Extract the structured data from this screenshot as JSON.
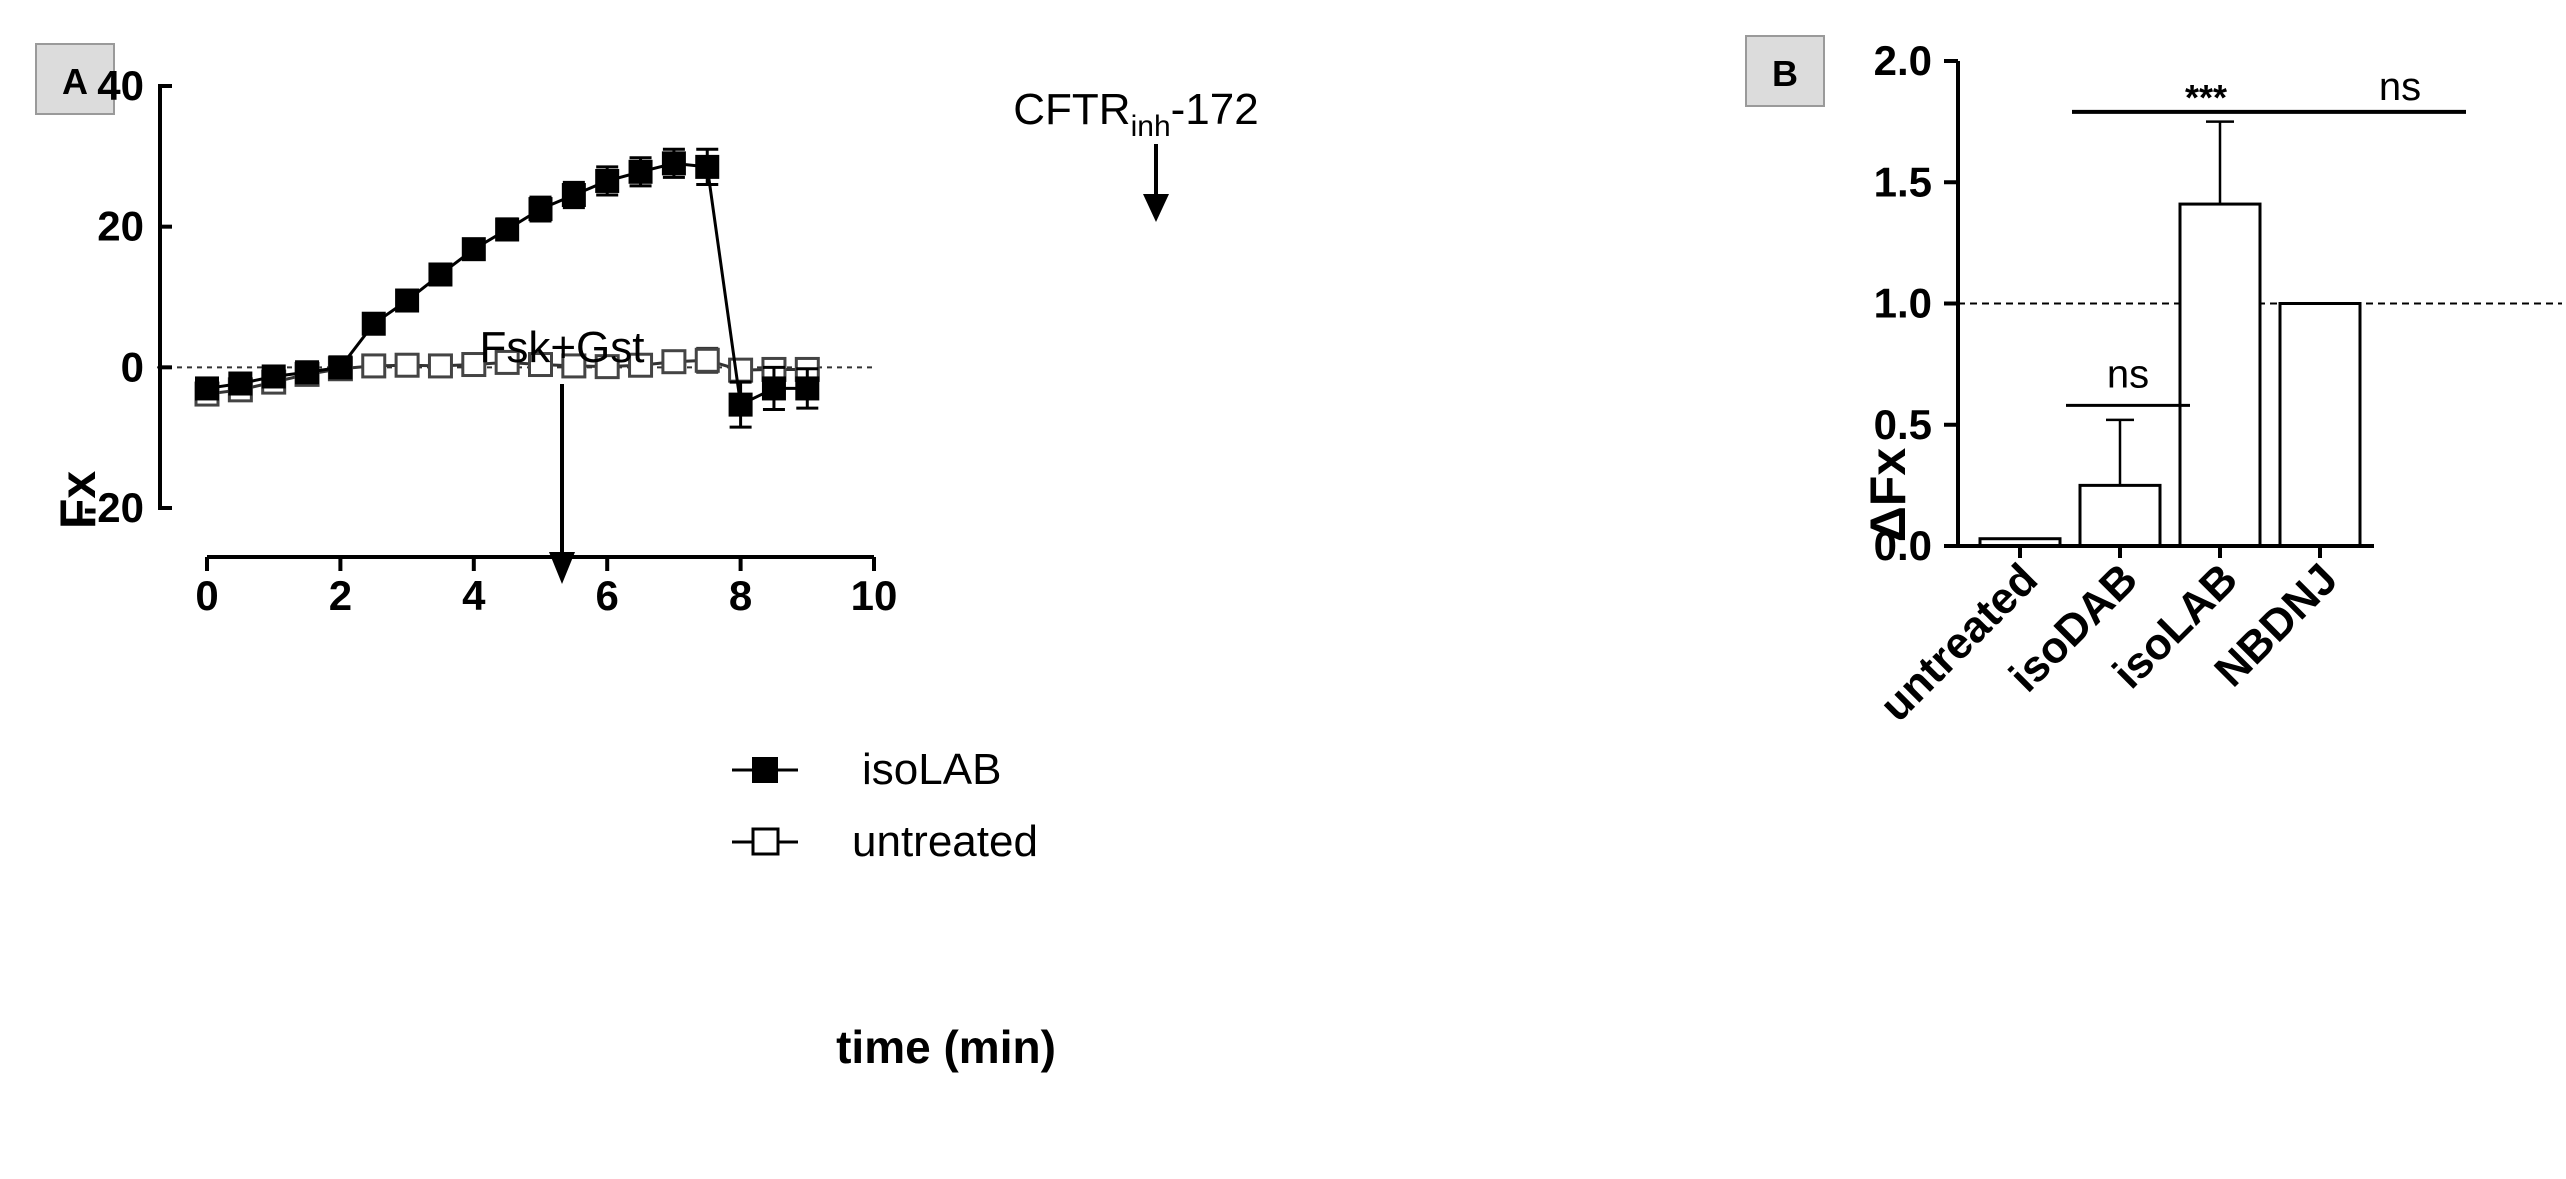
{
  "figure": {
    "panels": [
      {
        "letter": "A"
      },
      {
        "letter": "B"
      }
    ]
  },
  "chart_data": [
    {
      "type": "line",
      "panel": "A",
      "xlabel": "time (min)",
      "ylabel": "Fx",
      "xlim": [
        0,
        10
      ],
      "ylim": [
        -20,
        40
      ],
      "xticks": [
        0,
        2,
        4,
        6,
        8,
        10
      ],
      "yticks": [
        -20,
        0,
        20,
        40
      ],
      "reference_line_y": 0,
      "legend_position": "bottom-center",
      "annotations": [
        {
          "text": "Fsk+Gst",
          "x": 2
        },
        {
          "text_main": "CFTR",
          "text_sub": "inh",
          "text_tail": "-172",
          "x": 7.5
        }
      ],
      "series": [
        {
          "name": "isoLAB",
          "marker": "filled-square",
          "color": "#000000",
          "x": [
            0,
            0.5,
            1,
            1.5,
            2,
            2.5,
            3,
            3.5,
            4,
            4.5,
            5,
            5.5,
            6,
            6.5,
            7,
            7.5,
            8,
            8.5,
            9
          ],
          "y": [
            -3,
            -2.3,
            -1.3,
            -0.7,
            0,
            6.2,
            9.5,
            13.2,
            16.8,
            19.6,
            22.5,
            24.5,
            26.5,
            27.8,
            29.0,
            28.5,
            -5.3,
            -3.0,
            -3.0
          ],
          "err": [
            0.8,
            0.9,
            0.9,
            0.8,
            0.8,
            0.8,
            1.0,
            1.2,
            1.3,
            1.5,
            1.7,
            1.8,
            2.0,
            2.0,
            2.0,
            2.5,
            3.2,
            3.0,
            2.8
          ]
        },
        {
          "name": "untreated",
          "marker": "open-square",
          "color": "#555555",
          "x": [
            0,
            0.5,
            1,
            1.5,
            2,
            2.5,
            3,
            3.5,
            4,
            4.5,
            5,
            5.5,
            6,
            6.5,
            7,
            7.5,
            8,
            8.5,
            9
          ],
          "y": [
            -3.8,
            -3.2,
            -2.1,
            -1.0,
            -0.2,
            0.2,
            0.3,
            0.2,
            0.4,
            0.7,
            0.4,
            0.2,
            0.1,
            0.3,
            0.8,
            1.0,
            -0.4,
            -0.3,
            -0.3
          ],
          "err": [
            0.8,
            0.8,
            0.8,
            0.8,
            0.6,
            0.8,
            0.8,
            0.9,
            0.9,
            1.0,
            1.0,
            1.0,
            1.2,
            1.3,
            1.5,
            1.7,
            1.5,
            1.4,
            1.3
          ]
        }
      ]
    },
    {
      "type": "bar",
      "panel": "B",
      "ylabel": "ΔFx",
      "ylim": [
        0,
        2.0
      ],
      "yticks": [
        "0.0",
        "0.5",
        "1.0",
        "1.5",
        "2.0"
      ],
      "reference_line_y": 1.0,
      "categories": [
        "untreated",
        "isoDAB",
        "isoLAB",
        "NBDNJ"
      ],
      "values": [
        0.03,
        0.25,
        1.41,
        1.0
      ],
      "errors": [
        0,
        0.27,
        0.34,
        0
      ],
      "significance": [
        {
          "label": "ns",
          "from": "untreated",
          "to": "isoDAB",
          "y": 0.58
        },
        {
          "label": "***",
          "from": "untreated",
          "to": "NBDNJ",
          "y": 1.79
        },
        {
          "label": "ns",
          "from": "untreated",
          "to": "NBDNJ",
          "y": 1.79
        }
      ]
    }
  ]
}
